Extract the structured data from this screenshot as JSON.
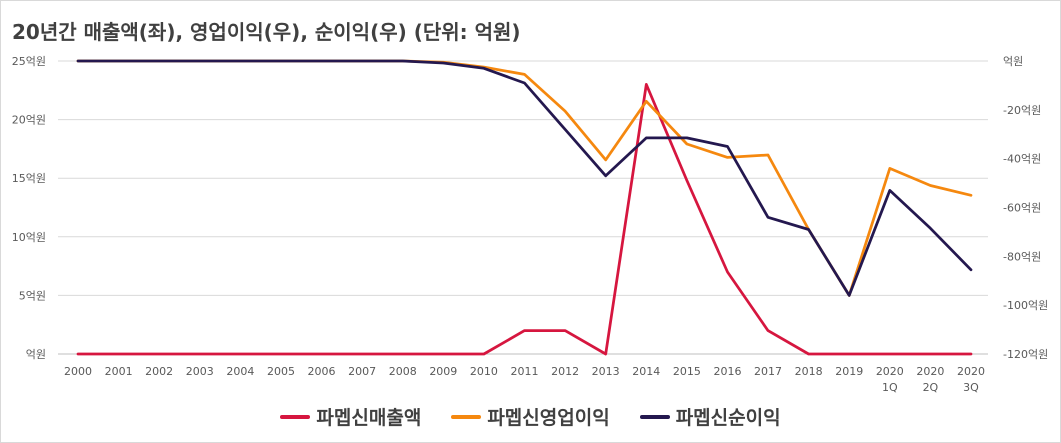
{
  "chart_data": {
    "type": "line",
    "title": "20년간 매출액(좌), 영업이익(우), 순이익(우) (단위: 억원)",
    "x": [
      "2000",
      "2001",
      "2002",
      "2003",
      "2004",
      "2005",
      "2006",
      "2007",
      "2008",
      "2009",
      "2010",
      "2011",
      "2012",
      "2013",
      "2014",
      "2015",
      "2016",
      "2017",
      "2018",
      "2019",
      "2020\n1Q",
      "2020\n2Q",
      "2020\n3Q"
    ],
    "left_axis": {
      "ylim": [
        0,
        25
      ],
      "ticks": [
        0,
        5,
        10,
        15,
        20,
        25
      ],
      "tick_labels": [
        "억원",
        "5억원",
        "10억원",
        "15억원",
        "20억원",
        "25억원"
      ]
    },
    "right_axis": {
      "ylim": [
        -120,
        0
      ],
      "ticks": [
        0,
        -20,
        -40,
        -60,
        -80,
        -100,
        -120
      ],
      "tick_labels": [
        "억원",
        "-20억원",
        "-40억원",
        "-60억원",
        "-80억원",
        "-100억원",
        "-120억원"
      ]
    },
    "grid": true,
    "legend_position": "bottom",
    "series": [
      {
        "name": "파멥신매출액",
        "axis": "left",
        "color": "#d6163f",
        "values": [
          0,
          0,
          0,
          0,
          0,
          0,
          0,
          0,
          0,
          0,
          0,
          2,
          2,
          0,
          23,
          14.8,
          7,
          2,
          0,
          0,
          0,
          0,
          0
        ]
      },
      {
        "name": "파멥신영업이익",
        "axis": "right",
        "color": "#f5880f",
        "values": [
          0,
          0,
          0,
          0,
          0,
          0,
          0,
          0,
          0,
          -0.5,
          -2.5,
          -5.5,
          -20.5,
          -40.5,
          -16.5,
          -34,
          -39.5,
          -38.5,
          -69,
          -96,
          -44,
          -51,
          -55
        ]
      },
      {
        "name": "파멥신순이익",
        "axis": "right",
        "color": "#24184f",
        "values": [
          0,
          0,
          0,
          0,
          0,
          0,
          0,
          0,
          0,
          -0.8,
          -3,
          -9,
          -28,
          -47,
          -31.5,
          -31.5,
          -35,
          -64,
          -69,
          -96,
          -53,
          -68.5,
          -85.5
        ]
      }
    ]
  }
}
